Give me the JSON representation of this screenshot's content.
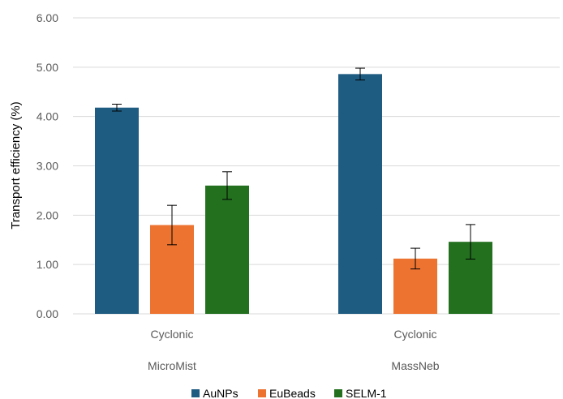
{
  "chart_data": {
    "type": "bar",
    "ylabel": "Transport efficiency (%)",
    "ylim": [
      0,
      6
    ],
    "yticks": [
      "0.00",
      "1.00",
      "2.00",
      "3.00",
      "4.00",
      "5.00",
      "6.00"
    ],
    "grid": true,
    "legend_position": "bottom",
    "groups": [
      {
        "sub": "Cyclonic",
        "label": "MicroMist"
      },
      {
        "sub": "Cyclonic",
        "label": "MassNeb"
      }
    ],
    "series": [
      {
        "name": "AuNPs",
        "color": "#1f5c82",
        "values": [
          4.18,
          4.86
        ],
        "errors": [
          0.07,
          0.12
        ]
      },
      {
        "name": "EuBeads",
        "color": "#ed7331",
        "values": [
          1.8,
          1.12
        ],
        "errors": [
          0.4,
          0.21
        ]
      },
      {
        "name": "SELM-1",
        "color": "#23701f",
        "values": [
          2.6,
          1.46
        ],
        "errors": [
          0.28,
          0.35
        ]
      }
    ]
  }
}
